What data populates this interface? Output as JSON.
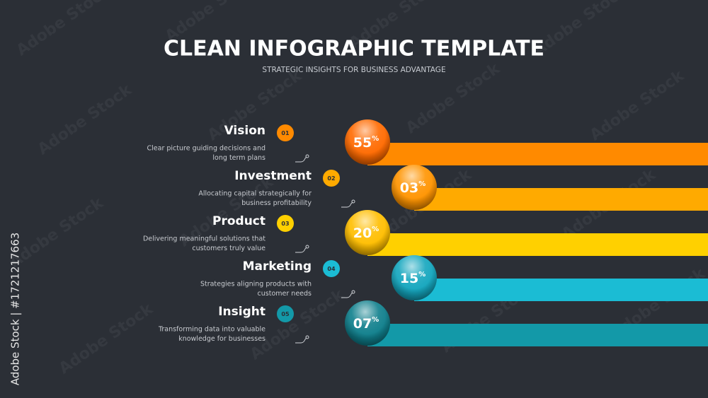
{
  "header": {
    "title": "CLEAN INFOGRAPHIC TEMPLATE",
    "subtitle": "STRATEGIC INSIGHTS FOR BUSINESS ADVANTAGE"
  },
  "items": [
    {
      "number": "01",
      "title": "Vision",
      "description": [
        "Clear picture guiding decisions and",
        "long term plans"
      ],
      "value": "55",
      "unit": "%",
      "color": "#ff8a00",
      "ball_color": "#ff6a00"
    },
    {
      "number": "02",
      "title": "Investment",
      "description": [
        "Allocating capital strategically for",
        "business profitability"
      ],
      "value": "03",
      "unit": "%",
      "color": "#ffaa00",
      "ball_color": "#ff9400"
    },
    {
      "number": "03",
      "title": "Product",
      "description": [
        "Delivering meaningful solutions that",
        "customers truly value"
      ],
      "value": "20",
      "unit": "%",
      "color": "#ffd000",
      "ball_color": "#ffbe00"
    },
    {
      "number": "04",
      "title": "Marketing",
      "description": [
        "Strategies aligning products with",
        "customer needs"
      ],
      "value": "15",
      "unit": "%",
      "color": "#1bbcd4",
      "ball_color": "#14a6be"
    },
    {
      "number": "05",
      "title": "Insight",
      "description": [
        "Transforming data into valuable",
        "knowledge for businesses"
      ],
      "value": "07",
      "unit": "%",
      "color": "#1399a8",
      "ball_color": "#0f7f8c"
    }
  ],
  "watermark": {
    "text": "Adobe Stock",
    "side_text": "Adobe Stock | #1721217663"
  }
}
